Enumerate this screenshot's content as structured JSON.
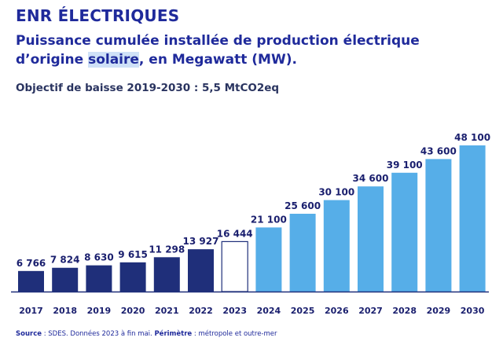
{
  "title": "ENR ÉLECTRIQUES",
  "subtitle_pre": "Puissance cumulée installée de production électrique d’origine ",
  "subtitle_hl": "solaire",
  "subtitle_post": ", en Megawatt (MW).",
  "objective": "Objectif de baisse 2019-2030 : 5,5 MtCO2eq",
  "source": {
    "label1": "Source",
    "text1": " : SDES. Données 2023 à fin mai. ",
    "label2": "Périmètre",
    "text2": " : métropole et outre-mer"
  },
  "colors": {
    "historical": "#1f2f7a",
    "current": "#ffffff",
    "projection": "#56aee8",
    "label": "#1a1f6e"
  },
  "chart_data": {
    "type": "bar",
    "categories": [
      "2017",
      "2018",
      "2019",
      "2020",
      "2021",
      "2022",
      "2023",
      "2024",
      "2025",
      "2026",
      "2027",
      "2028",
      "2029",
      "2030"
    ],
    "values": [
      6766,
      7824,
      8630,
      9615,
      11298,
      13927,
      16444,
      21100,
      25600,
      30100,
      34600,
      39100,
      43600,
      48100
    ],
    "labels": [
      "6 766",
      "7 824",
      "8 630",
      "9 615",
      "11 298",
      "13 927",
      "16 444",
      "21 100",
      "25 600",
      "30 100",
      "34 600",
      "39 100",
      "43 600",
      "48 100"
    ],
    "kinds": [
      "historical",
      "historical",
      "historical",
      "historical",
      "historical",
      "historical",
      "current",
      "projection",
      "projection",
      "projection",
      "projection",
      "projection",
      "projection",
      "projection"
    ],
    "xlabel": "",
    "ylabel": "",
    "ylim": [
      0,
      48100
    ],
    "grid": false
  }
}
